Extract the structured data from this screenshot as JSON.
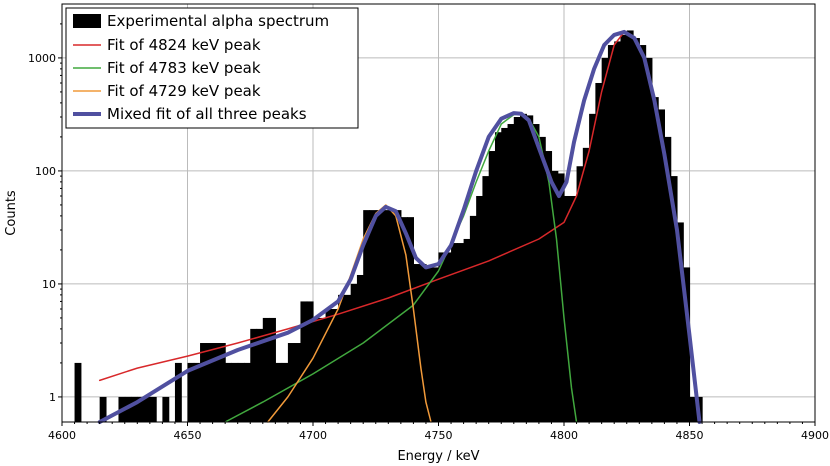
{
  "chart_data": {
    "type": "bar",
    "xlabel": "Energy / keV",
    "ylabel": "Counts",
    "xlim": [
      4600,
      4900
    ],
    "ylim": [
      0.6,
      3000
    ],
    "yscale": "log",
    "grid": true,
    "legend_position": "top-left",
    "x_ticks": [
      4600,
      4650,
      4700,
      4750,
      4800,
      4850,
      4900
    ],
    "y_ticks": [
      {
        "value": 1,
        "label": "1"
      },
      {
        "value": 10,
        "label": "10"
      },
      {
        "value": 100,
        "label": "100"
      },
      {
        "value": 1000,
        "label": "1000"
      }
    ],
    "histogram": {
      "name": "Experimental alpha spectrum",
      "color": "#000000",
      "bin_width": 2.5,
      "bins": [
        [
          4605,
          2
        ],
        [
          4615,
          1
        ],
        [
          4622.5,
          1
        ],
        [
          4625,
          1
        ],
        [
          4627.5,
          1
        ],
        [
          4630,
          1
        ],
        [
          4632.5,
          1
        ],
        [
          4635,
          1
        ],
        [
          4640,
          1
        ],
        [
          4645,
          2
        ],
        [
          4650,
          2
        ],
        [
          4652.5,
          2
        ],
        [
          4655,
          3
        ],
        [
          4657.5,
          3
        ],
        [
          4660,
          3
        ],
        [
          4662.5,
          3
        ],
        [
          4665,
          2
        ],
        [
          4667.5,
          2
        ],
        [
          4670,
          2
        ],
        [
          4672.5,
          2
        ],
        [
          4675,
          4
        ],
        [
          4677.5,
          4
        ],
        [
          4680,
          5
        ],
        [
          4682.5,
          5
        ],
        [
          4685,
          2
        ],
        [
          4687.5,
          2
        ],
        [
          4690,
          3
        ],
        [
          4692.5,
          3
        ],
        [
          4695,
          7
        ],
        [
          4697.5,
          7
        ],
        [
          4700,
          5
        ],
        [
          4702.5,
          5
        ],
        [
          4705,
          6
        ],
        [
          4707.5,
          6
        ],
        [
          4710,
          8
        ],
        [
          4712.5,
          8
        ],
        [
          4715,
          10
        ],
        [
          4717.5,
          12
        ],
        [
          4720,
          45
        ],
        [
          4722.5,
          45
        ],
        [
          4725,
          45
        ],
        [
          4727.5,
          45
        ],
        [
          4730,
          45
        ],
        [
          4732.5,
          45
        ],
        [
          4735,
          39
        ],
        [
          4737.5,
          39
        ],
        [
          4740,
          15
        ],
        [
          4742.5,
          15
        ],
        [
          4745,
          14
        ],
        [
          4747.5,
          14
        ],
        [
          4750,
          19
        ],
        [
          4752.5,
          19
        ],
        [
          4755,
          23
        ],
        [
          4757.5,
          23
        ],
        [
          4760,
          25
        ],
        [
          4762.5,
          40
        ],
        [
          4765,
          60
        ],
        [
          4767.5,
          90
        ],
        [
          4770,
          150
        ],
        [
          4772.5,
          220
        ],
        [
          4775,
          240
        ],
        [
          4777.5,
          260
        ],
        [
          4780,
          300
        ],
        [
          4782.5,
          320
        ],
        [
          4785,
          310
        ],
        [
          4787.5,
          260
        ],
        [
          4790,
          200
        ],
        [
          4792.5,
          150
        ],
        [
          4795,
          100
        ],
        [
          4797.5,
          95
        ],
        [
          4800,
          60
        ],
        [
          4802.5,
          60
        ],
        [
          4805,
          110
        ],
        [
          4807.5,
          160
        ],
        [
          4810,
          320
        ],
        [
          4812.5,
          600
        ],
        [
          4815,
          1000
        ],
        [
          4817.5,
          1300
        ],
        [
          4820,
          1400
        ],
        [
          4822.5,
          1600
        ],
        [
          4825,
          1750
        ],
        [
          4827.5,
          1500
        ],
        [
          4830,
          1300
        ],
        [
          4832.5,
          1000
        ],
        [
          4835,
          450
        ],
        [
          4837.5,
          350
        ],
        [
          4840,
          200
        ],
        [
          4842.5,
          90
        ],
        [
          4845,
          35
        ],
        [
          4847.5,
          14
        ],
        [
          4850,
          1
        ],
        [
          4852.5,
          1
        ]
      ]
    },
    "series": [
      {
        "name": "Fit of 4824 keV peak",
        "color": "#d8282a",
        "x": [
          4615,
          4630,
          4650,
          4670,
          4690,
          4710,
          4730,
          4750,
          4770,
          4790,
          4800,
          4805,
          4810,
          4815,
          4820,
          4824,
          4828,
          4832,
          4836,
          4840,
          4845,
          4850,
          4854
        ],
        "y": [
          1.4,
          1.8,
          2.3,
          3.0,
          4.0,
          5.4,
          7.5,
          11,
          16,
          25,
          35,
          60,
          150,
          500,
          1300,
          1700,
          1500,
          1000,
          400,
          140,
          30,
          3.5,
          0.65
        ]
      },
      {
        "name": "Fit of 4783 keV peak",
        "color": "#41a83e",
        "x": [
          4665,
          4680,
          4700,
          4720,
          4740,
          4750,
          4760,
          4765,
          4770,
          4775,
          4780,
          4783,
          4786,
          4790,
          4794,
          4797,
          4800,
          4803,
          4805
        ],
        "y": [
          0.6,
          0.9,
          1.6,
          3.0,
          6.5,
          13,
          40,
          80,
          150,
          260,
          315,
          320,
          290,
          200,
          80,
          25,
          5,
          1.2,
          0.6
        ]
      },
      {
        "name": "Fit of 4729 keV peak",
        "color": "#f19a3a",
        "x": [
          4682,
          4690,
          4700,
          4710,
          4715,
          4720,
          4725,
          4729,
          4733,
          4737,
          4740,
          4743,
          4745,
          4747
        ],
        "y": [
          0.6,
          1.0,
          2.2,
          6,
          12,
          25,
          42,
          50,
          40,
          18,
          6,
          1.8,
          0.9,
          0.6
        ]
      },
      {
        "name": "Mixed fit of all three peaks",
        "color": "#5050a0",
        "x": [
          4615,
          4630,
          4650,
          4670,
          4690,
          4700,
          4710,
          4715,
          4720,
          4725,
          4729,
          4733,
          4737,
          4741,
          4745,
          4750,
          4755,
          4760,
          4765,
          4770,
          4775,
          4780,
          4783,
          4786,
          4790,
          4795,
          4798,
          4801,
          4804,
          4808,
          4812,
          4816,
          4820,
          4824,
          4828,
          4832,
          4836,
          4840,
          4845,
          4850,
          4854
        ],
        "y": [
          0.6,
          0.9,
          1.7,
          2.6,
          3.7,
          4.8,
          7,
          11,
          22,
          40,
          48,
          44,
          28,
          17,
          14,
          15,
          22,
          45,
          100,
          200,
          290,
          325,
          320,
          280,
          160,
          80,
          60,
          80,
          180,
          420,
          800,
          1300,
          1600,
          1700,
          1500,
          1000,
          420,
          140,
          30,
          3.5,
          0.6
        ]
      }
    ]
  }
}
